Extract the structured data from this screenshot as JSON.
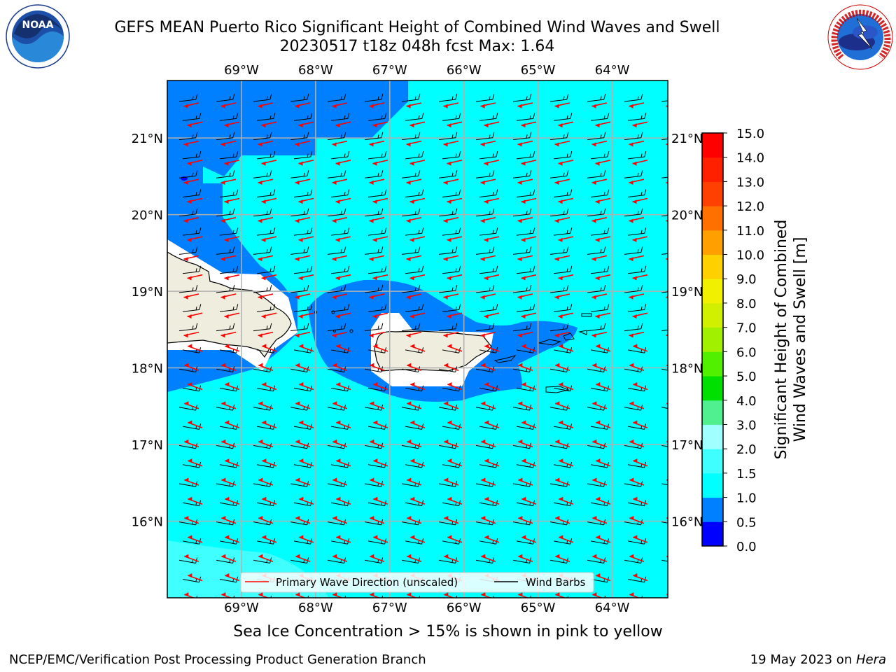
{
  "header": {
    "title_line1": "GEFS MEAN Puerto Rico Significant Height of Combined Wind Waves and Swell",
    "title_line2": "20230517 t18z 048h fcst   Max: 1.64"
  },
  "logos": {
    "left": {
      "text": "NOAA",
      "icon": "noaa-logo-icon",
      "ring_text": "NATIONAL OCEANIC AND ATMOSPHERIC ADMINISTRATION · U.S. DEPARTMENT OF COMMERCE"
    },
    "right": {
      "icon": "nws-logo-icon",
      "ring_text": "NATIONAL WEATHER SERVICE"
    }
  },
  "map": {
    "lon_labels": [
      "69°W",
      "68°W",
      "67°W",
      "66°W",
      "65°W",
      "64°W"
    ],
    "lat_labels": [
      "21°N",
      "20°N",
      "19°N",
      "18°N",
      "17°N",
      "16°N"
    ],
    "lon_range": [
      -70.0,
      -63.25
    ],
    "lat_range": [
      15.0,
      21.75
    ],
    "wind_barbs_from": "east",
    "wave_arrow_color": "#ff0000",
    "land_color": "#efedde",
    "legend": {
      "placement": "bottom-center",
      "items": [
        {
          "label": "Primary Wave Direction (unscaled)",
          "color": "#ff0000"
        },
        {
          "label": "Wind Barbs",
          "color": "#000000"
        }
      ]
    }
  },
  "colorbar": {
    "label_line1": "Significant Height of Combined",
    "label_line2": "Wind Waves and Swell [m]",
    "ticks": [
      "0.0",
      "0.5",
      "1.0",
      "1.5",
      "2.0",
      "3.0",
      "4.0",
      "5.0",
      "6.0",
      "7.0",
      "8.0",
      "9.0",
      "10.0",
      "11.0",
      "12.0",
      "13.0",
      "14.0",
      "15.0"
    ],
    "colors": [
      "#0000ff",
      "#0080ff",
      "#00ffff",
      "#40ffff",
      "#a0ffff",
      "#50f090",
      "#00e000",
      "#50f000",
      "#a0f000",
      "#d0f000",
      "#f0f000",
      "#ffd000",
      "#ffa000",
      "#ff7000",
      "#ff4000",
      "#ff2000",
      "#ff0000"
    ]
  },
  "footer": {
    "ice_note": "Sea Ice Concentration > 15% is shown in pink to yellow",
    "credit": "NCEP/EMC/Verification Post Processing Product Generation Branch",
    "date": "19 May 2023 on ",
    "machine": "Hera"
  }
}
